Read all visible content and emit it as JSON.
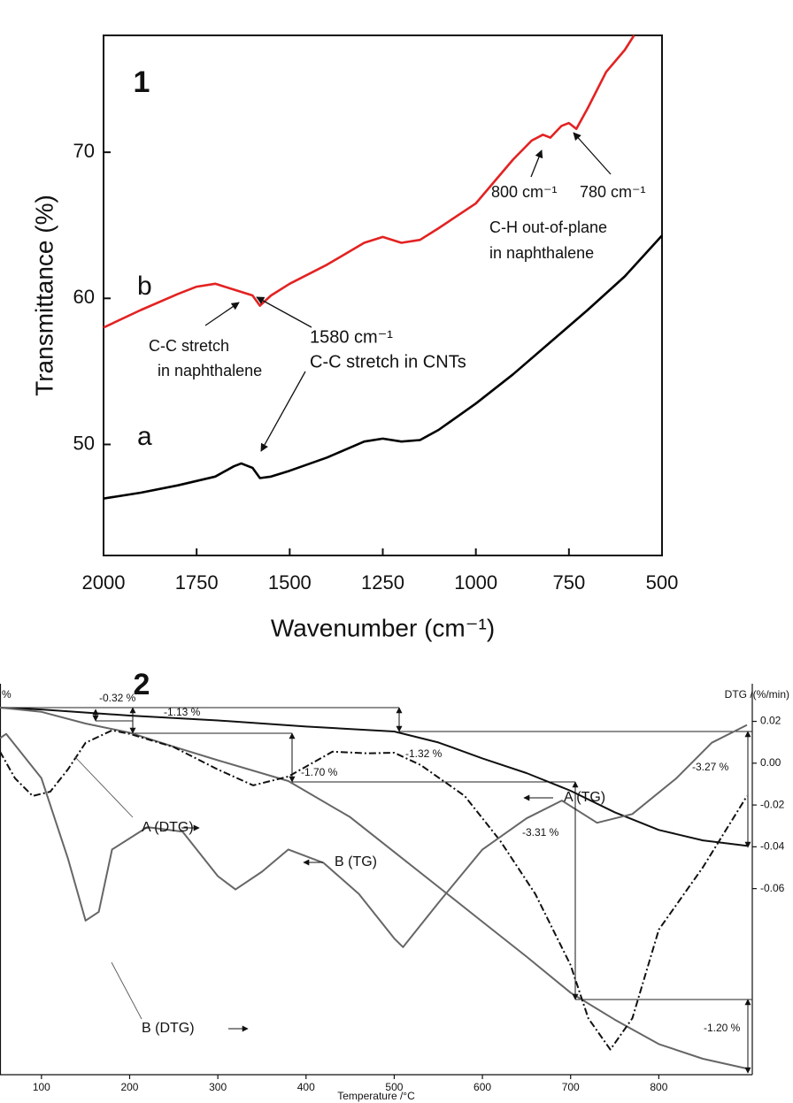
{
  "chart_data": [
    {
      "type": "line",
      "panel": "1",
      "xlabel": "Wavenumber (cm⁻¹)",
      "ylabel": "Transmittance (%)",
      "xlim": [
        2000,
        500
      ],
      "ylim": [
        42.4,
        78
      ],
      "xticks": [
        2000,
        1750,
        1500,
        1250,
        1000,
        750,
        500
      ],
      "yticks": [
        50,
        60,
        70
      ],
      "series": [
        {
          "name": "b",
          "color": "#e32222",
          "x": [
            2000,
            1900,
            1800,
            1750,
            1700,
            1650,
            1600,
            1580,
            1550,
            1500,
            1400,
            1300,
            1250,
            1200,
            1150,
            1100,
            1000,
            900,
            850,
            820,
            800,
            770,
            750,
            730,
            700,
            650,
            600,
            575
          ],
          "values": [
            58,
            59.2,
            60.3,
            60.8,
            61,
            60.6,
            60.2,
            59.5,
            60.2,
            61,
            62.3,
            63.8,
            64.2,
            63.8,
            64,
            64.8,
            66.5,
            69.5,
            70.8,
            71.2,
            71,
            71.8,
            72,
            71.6,
            73,
            75.5,
            77,
            78
          ]
        },
        {
          "name": "a",
          "color": "#000000",
          "x": [
            2000,
            1900,
            1800,
            1700,
            1650,
            1630,
            1600,
            1580,
            1550,
            1500,
            1400,
            1300,
            1250,
            1200,
            1150,
            1100,
            1000,
            900,
            800,
            700,
            600,
            500
          ],
          "values": [
            46.3,
            46.7,
            47.2,
            47.8,
            48.5,
            48.7,
            48.4,
            47.7,
            47.8,
            48.2,
            49.1,
            50.2,
            50.4,
            50.2,
            50.3,
            51,
            52.8,
            54.8,
            57,
            59.2,
            61.5,
            64.3
          ]
        }
      ],
      "annotations": [
        "C-C stretch",
        "in naphthalene",
        "1580 cm⁻¹",
        "C-C stretch in CNTs",
        "800 cm⁻¹",
        "780 cm⁻¹",
        "C-H out-of-plane",
        "in naphthalene"
      ]
    },
    {
      "type": "line",
      "panel": "2",
      "xlabel": "Temperature /°C",
      "ylabel": "%",
      "y2label": "DTG /(%/min)",
      "xlim": [
        53,
        906
      ],
      "ylim": [
        94.0,
        100.39
      ],
      "y2lim": [
        -0.149,
        0.038
      ],
      "xticks": [
        100,
        200,
        300,
        400,
        500,
        600,
        700,
        800
      ],
      "y2ticks": [
        0.02,
        {
          "value": 0,
          "label": "0.00"
        },
        -0.02,
        -0.04,
        -0.06
      ],
      "series": [
        {
          "name": "A (TG)",
          "color": "#111111",
          "x": [
            53,
            100,
            200,
            300,
            400,
            500,
            550,
            600,
            650,
            700,
            750,
            800,
            850,
            900
          ],
          "values": [
            100,
            99.97,
            99.87,
            99.79,
            99.69,
            99.61,
            99.43,
            99.17,
            98.93,
            98.64,
            98.29,
            98.0,
            97.83,
            97.74
          ]
        },
        {
          "name": "B (TG)",
          "color": "#666666",
          "x": [
            53,
            100,
            150,
            200,
            250,
            300,
            380,
            450,
            500,
            550,
            600,
            650,
            700,
            750,
            800,
            850,
            900
          ],
          "values": [
            100,
            99.93,
            99.74,
            99.59,
            99.36,
            99.14,
            98.8,
            98.21,
            97.64,
            97.07,
            96.5,
            95.93,
            95.34,
            94.9,
            94.5,
            94.26,
            94.1
          ]
        },
        {
          "name": "A (DTG)",
          "color": "#111111",
          "axis": "y2",
          "dash": true,
          "x": [
            53,
            70,
            90,
            110,
            130,
            150,
            180,
            200,
            250,
            300,
            340,
            380,
            430,
            470,
            500,
            530,
            580,
            620,
            660,
            700,
            720,
            745,
            770,
            800,
            850,
            900
          ],
          "values": [
            0.0055,
            -0.0072,
            -0.0157,
            -0.0136,
            -0.003,
            0.0098,
            0.0157,
            0.014,
            0.0077,
            -0.003,
            -0.0106,
            -0.0064,
            0.0055,
            0.0047,
            0.005,
            -0.0009,
            -0.0157,
            -0.037,
            -0.0626,
            -0.0966,
            -0.122,
            -0.137,
            -0.122,
            -0.0796,
            -0.0498,
            -0.0157
          ]
        },
        {
          "name": "B (DTG)",
          "color": "#666666",
          "axis": "y2",
          "x": [
            53,
            60,
            100,
            130,
            150,
            165,
            180,
            220,
            260,
            300,
            320,
            350,
            380,
            420,
            460,
            500,
            510,
            550,
            600,
            650,
            690,
            730,
            770,
            820,
            860,
            900
          ],
          "values": [
            0.012,
            0.014,
            -0.0072,
            -0.0455,
            -0.0753,
            -0.0711,
            -0.0413,
            -0.0306,
            -0.0328,
            -0.054,
            -0.0604,
            -0.0519,
            -0.0413,
            -0.0477,
            -0.0626,
            -0.0838,
            -0.088,
            -0.0668,
            -0.0413,
            -0.0264,
            -0.0179,
            -0.0285,
            -0.0243,
            -0.0072,
            0.0098,
            0.0183
          ]
        }
      ],
      "annotations": [
        "-0.32 %",
        "-1.13 %",
        "-1.32 %",
        "-1.70 %",
        "-3.31 %",
        "-3.27 %",
        "-1.20 %"
      ]
    }
  ]
}
